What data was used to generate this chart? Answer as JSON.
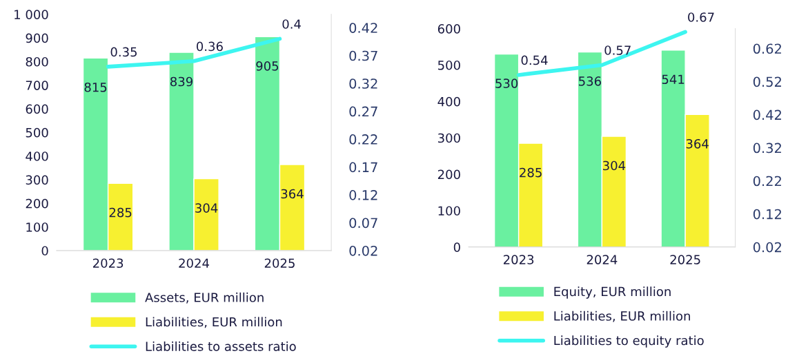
{
  "chart_data": [
    {
      "type": "bar",
      "categories": [
        "2023",
        "2024",
        "2025"
      ],
      "series": [
        {
          "name": "Assets, EUR million",
          "color": "#6af0a0",
          "values": [
            815,
            839,
            905
          ]
        },
        {
          "name": "Liabilities, EUR million",
          "color": "#f7f030",
          "values": [
            285,
            304,
            364
          ]
        },
        {
          "name": "Liabilities to assets ratio",
          "type": "line",
          "axis": "y2",
          "color": "#3df5f0",
          "values": [
            0.35,
            0.36,
            0.4
          ]
        }
      ],
      "ylim": [
        0,
        1000
      ],
      "yticks": [
        0,
        100,
        200,
        300,
        400,
        500,
        600,
        700,
        800,
        900,
        {
          "value": 1000,
          "label": "1 000"
        }
      ],
      "y2lim": [
        0.02,
        0.444
      ],
      "y2ticks": [
        0.02,
        0.07,
        0.12,
        0.17,
        0.22,
        0.27,
        0.32,
        0.37,
        0.42
      ],
      "data_labels": true,
      "grid": false,
      "legend": "bottom",
      "marker": "none"
    },
    {
      "type": "bar",
      "categories": [
        "2023",
        "2024",
        "2025"
      ],
      "series": [
        {
          "name": "Equity, EUR million",
          "color": "#6af0a0",
          "values": [
            530,
            536,
            541
          ]
        },
        {
          "name": "Liabilities, EUR million",
          "color": "#f7f030",
          "values": [
            285,
            304,
            364
          ]
        },
        {
          "name": "Liabilities to equity ratio",
          "type": "line",
          "axis": "y2",
          "color": "#3df5f0",
          "values": [
            0.54,
            0.57,
            0.67
          ]
        }
      ],
      "ylim": [
        0,
        600
      ],
      "yticks": [
        0,
        100,
        200,
        300,
        400,
        500,
        600
      ],
      "y2lim": [
        0.02,
        0.68
      ],
      "y2ticks": [
        0.02,
        0.12,
        0.22,
        0.32,
        0.42,
        0.52,
        0.62
      ],
      "data_labels": true,
      "grid": false,
      "legend": "bottom",
      "marker": "none"
    }
  ]
}
